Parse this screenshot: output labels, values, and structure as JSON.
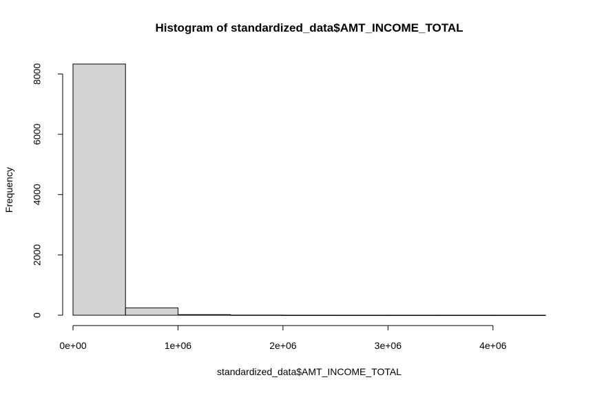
{
  "chart_data": {
    "type": "bar",
    "title": "Histogram of standardized_data$AMT_INCOME_TOTAL",
    "xlabel": "standardized_data$AMT_INCOME_TOTAL",
    "ylabel": "Frequency",
    "bins": [
      {
        "start": 0,
        "end": 500000,
        "count": 8330
      },
      {
        "start": 500000,
        "end": 1000000,
        "count": 245
      },
      {
        "start": 1000000,
        "end": 1500000,
        "count": 20
      },
      {
        "start": 1500000,
        "end": 2000000,
        "count": 5
      },
      {
        "start": 2000000,
        "end": 2500000,
        "count": 2
      },
      {
        "start": 2500000,
        "end": 3000000,
        "count": 1
      },
      {
        "start": 3000000,
        "end": 3500000,
        "count": 1
      },
      {
        "start": 3500000,
        "end": 4000000,
        "count": 1
      },
      {
        "start": 4000000,
        "end": 4500000,
        "count": 1
      }
    ],
    "xlim": [
      0,
      4500000
    ],
    "ylim": [
      0,
      8330
    ],
    "x_ticks": [
      {
        "value": 0,
        "label": "0e+00"
      },
      {
        "value": 1000000,
        "label": "1e+06"
      },
      {
        "value": 2000000,
        "label": "2e+06"
      },
      {
        "value": 3000000,
        "label": "3e+06"
      },
      {
        "value": 4000000,
        "label": "4e+06"
      }
    ],
    "y_ticks": [
      {
        "value": 0,
        "label": "0"
      },
      {
        "value": 2000,
        "label": "2000"
      },
      {
        "value": 4000,
        "label": "4000"
      },
      {
        "value": 6000,
        "label": "6000"
      },
      {
        "value": 8000,
        "label": "8000"
      }
    ],
    "grid": false,
    "legend": "none",
    "colors": {
      "bar_fill": "#d3d3d3",
      "bar_stroke": "#000000"
    }
  }
}
